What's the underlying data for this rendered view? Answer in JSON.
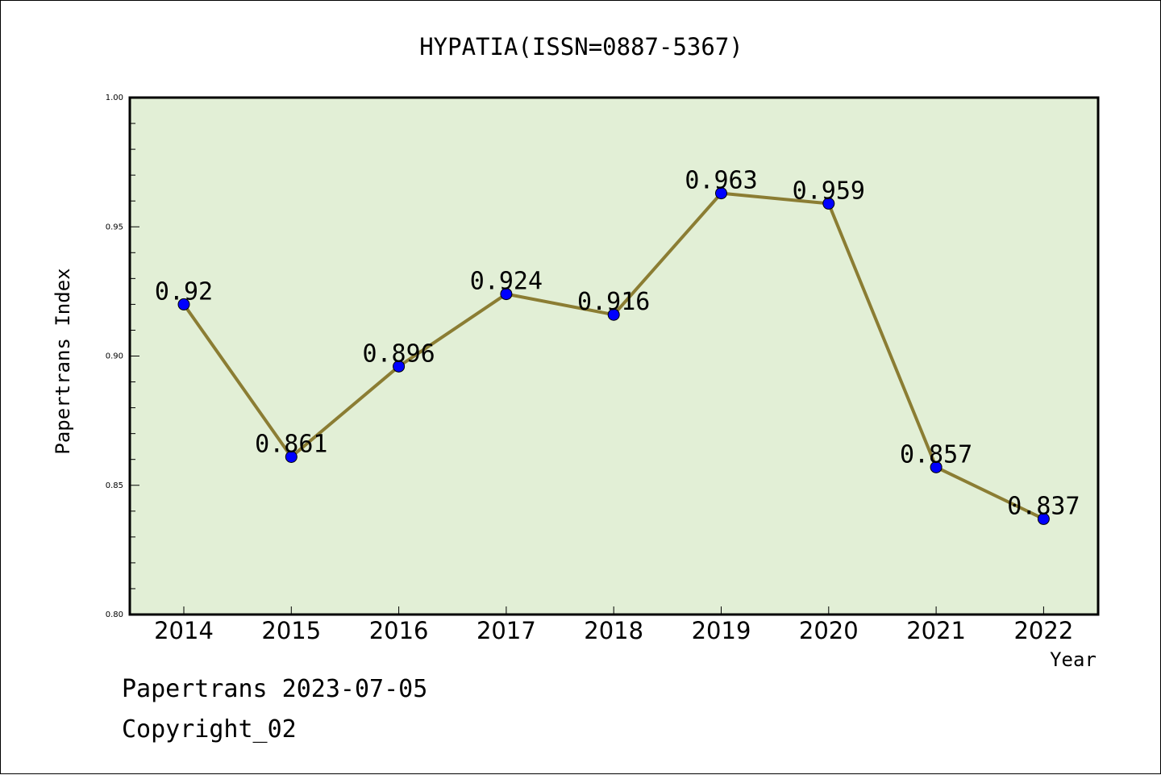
{
  "chart_data": {
    "type": "line",
    "title": "HYPATIA(ISSN=0887-5367)",
    "xlabel": "Year",
    "ylabel": "Papertrans Index",
    "categories": [
      "2014",
      "2015",
      "2016",
      "2017",
      "2018",
      "2019",
      "2020",
      "2021",
      "2022"
    ],
    "series": [
      {
        "values": [
          0.92,
          0.861,
          0.896,
          0.924,
          0.916,
          0.963,
          0.959,
          0.857,
          0.837
        ],
        "labels": [
          "0.92",
          "0.861",
          "0.896",
          "0.924",
          "0.916",
          "0.963",
          "0.959",
          "0.857",
          "0.837"
        ],
        "line_color": "#8b7d33",
        "marker_color": "#0000ff"
      }
    ],
    "ylim": [
      0.8,
      1.0
    ],
    "yticks": [
      "0.80",
      "0.85",
      "0.90",
      "0.95",
      "1.00"
    ],
    "plot_background": "#e2efd6",
    "grid": false
  },
  "footer": {
    "date_line": "Papertrans 2023-07-05",
    "copyright_line": "Copyright_02"
  }
}
